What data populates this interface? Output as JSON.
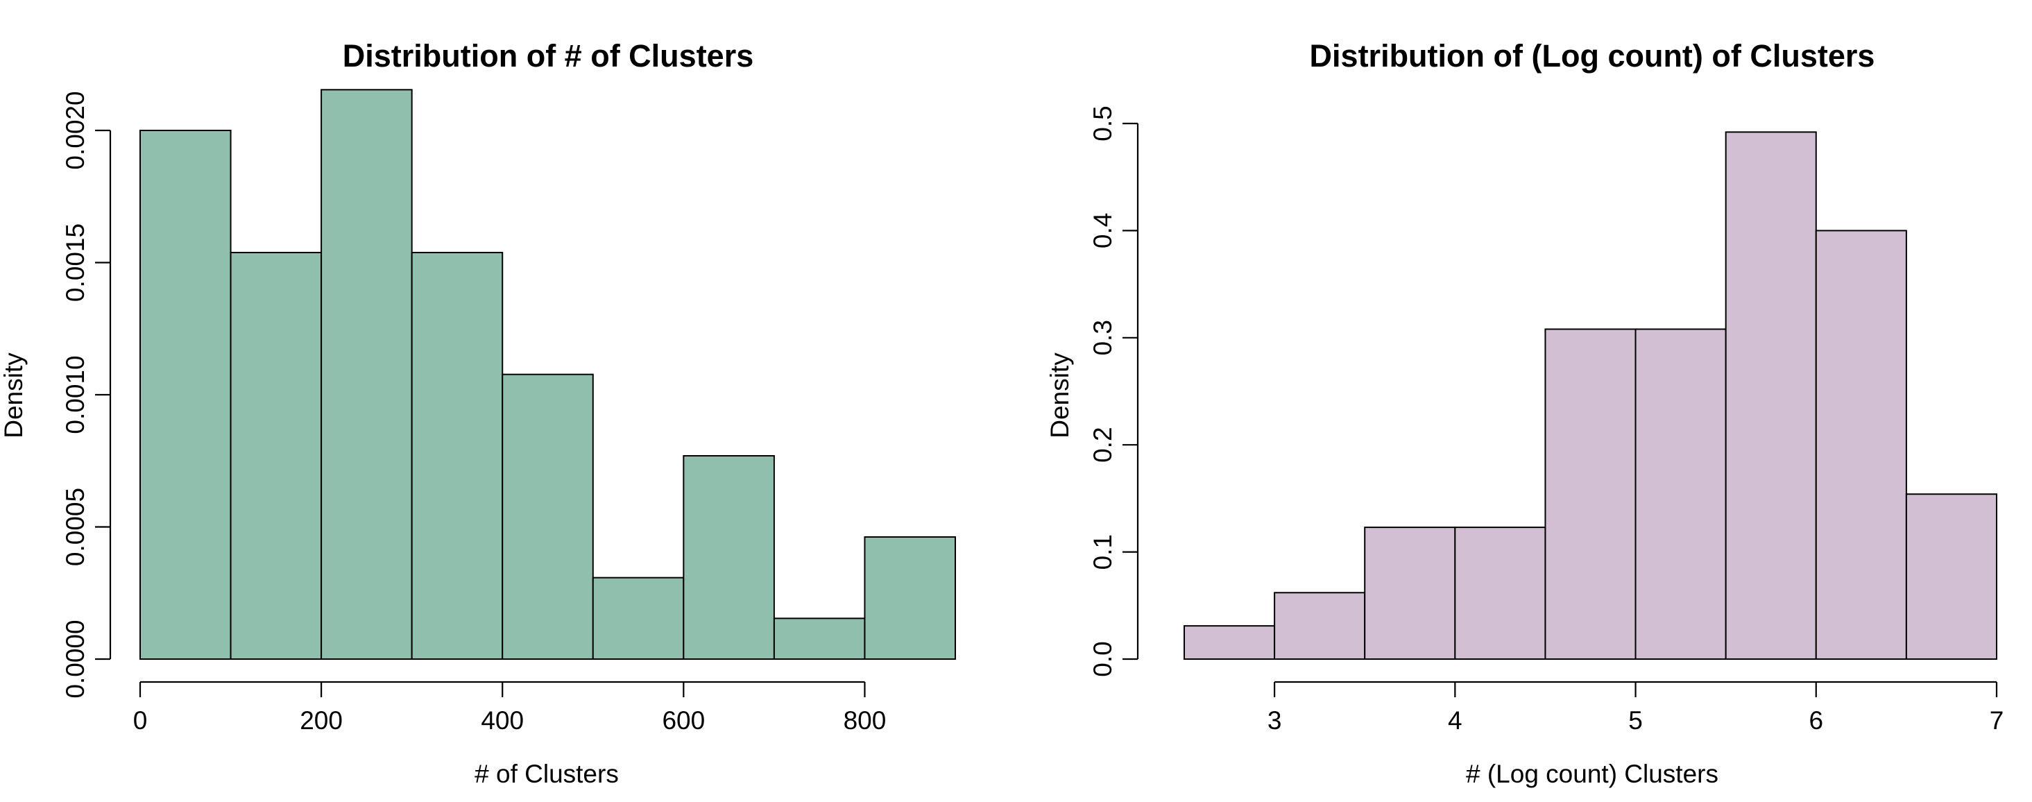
{
  "chart_data": [
    {
      "type": "bar",
      "title": "Distribution of # of Clusters",
      "xlabel": "# of Clusters",
      "ylabel": "Density",
      "color": "#91bfae",
      "bins": [
        {
          "x0": 0,
          "x1": 100,
          "density": 0.002
        },
        {
          "x0": 100,
          "x1": 200,
          "density": 0.001538
        },
        {
          "x0": 200,
          "x1": 300,
          "density": 0.002154
        },
        {
          "x0": 300,
          "x1": 400,
          "density": 0.001538
        },
        {
          "x0": 400,
          "x1": 500,
          "density": 0.001077
        },
        {
          "x0": 500,
          "x1": 600,
          "density": 0.000308
        },
        {
          "x0": 600,
          "x1": 700,
          "density": 0.000769
        },
        {
          "x0": 700,
          "x1": 800,
          "density": 0.000154
        },
        {
          "x0": 800,
          "x1": 900,
          "density": 0.000462
        }
      ],
      "xlim": [
        0,
        900
      ],
      "ylim": [
        0,
        0.0022
      ],
      "x_ticks": [
        0,
        200,
        400,
        600,
        800
      ],
      "x_tick_labels": [
        "0",
        "200",
        "400",
        "600",
        "800"
      ],
      "y_ticks": [
        0,
        0.0005,
        0.001,
        0.0015,
        0.002
      ],
      "y_tick_labels": [
        "0.0000",
        "0.0005",
        "0.0010",
        "0.0015",
        "0.0020"
      ],
      "grid": false
    },
    {
      "type": "bar",
      "title": "Distribution of (Log count) of Clusters",
      "xlabel": "# (Log count) Clusters",
      "ylabel": "Density",
      "color": "#d2bfd3",
      "bins": [
        {
          "x0": 2.5,
          "x1": 3.0,
          "density": 0.031
        },
        {
          "x0": 3.0,
          "x1": 3.5,
          "density": 0.062
        },
        {
          "x0": 3.5,
          "x1": 4.0,
          "density": 0.123
        },
        {
          "x0": 4.0,
          "x1": 4.5,
          "density": 0.123
        },
        {
          "x0": 4.5,
          "x1": 5.0,
          "density": 0.308
        },
        {
          "x0": 5.0,
          "x1": 5.5,
          "density": 0.308
        },
        {
          "x0": 5.5,
          "x1": 6.0,
          "density": 0.492
        },
        {
          "x0": 6.0,
          "x1": 6.5,
          "density": 0.4
        },
        {
          "x0": 6.5,
          "x1": 7.0,
          "density": 0.154
        }
      ],
      "xlim": [
        2.5,
        7.0
      ],
      "ylim": [
        0,
        0.5
      ],
      "x_ticks": [
        3,
        4,
        5,
        6,
        7
      ],
      "x_tick_labels": [
        "3",
        "4",
        "5",
        "6",
        "7"
      ],
      "y_ticks": [
        0,
        0.1,
        0.2,
        0.3,
        0.4,
        0.5
      ],
      "y_tick_labels": [
        "0.0",
        "0.1",
        "0.2",
        "0.3",
        "0.4",
        "0.5"
      ],
      "grid": false
    }
  ]
}
